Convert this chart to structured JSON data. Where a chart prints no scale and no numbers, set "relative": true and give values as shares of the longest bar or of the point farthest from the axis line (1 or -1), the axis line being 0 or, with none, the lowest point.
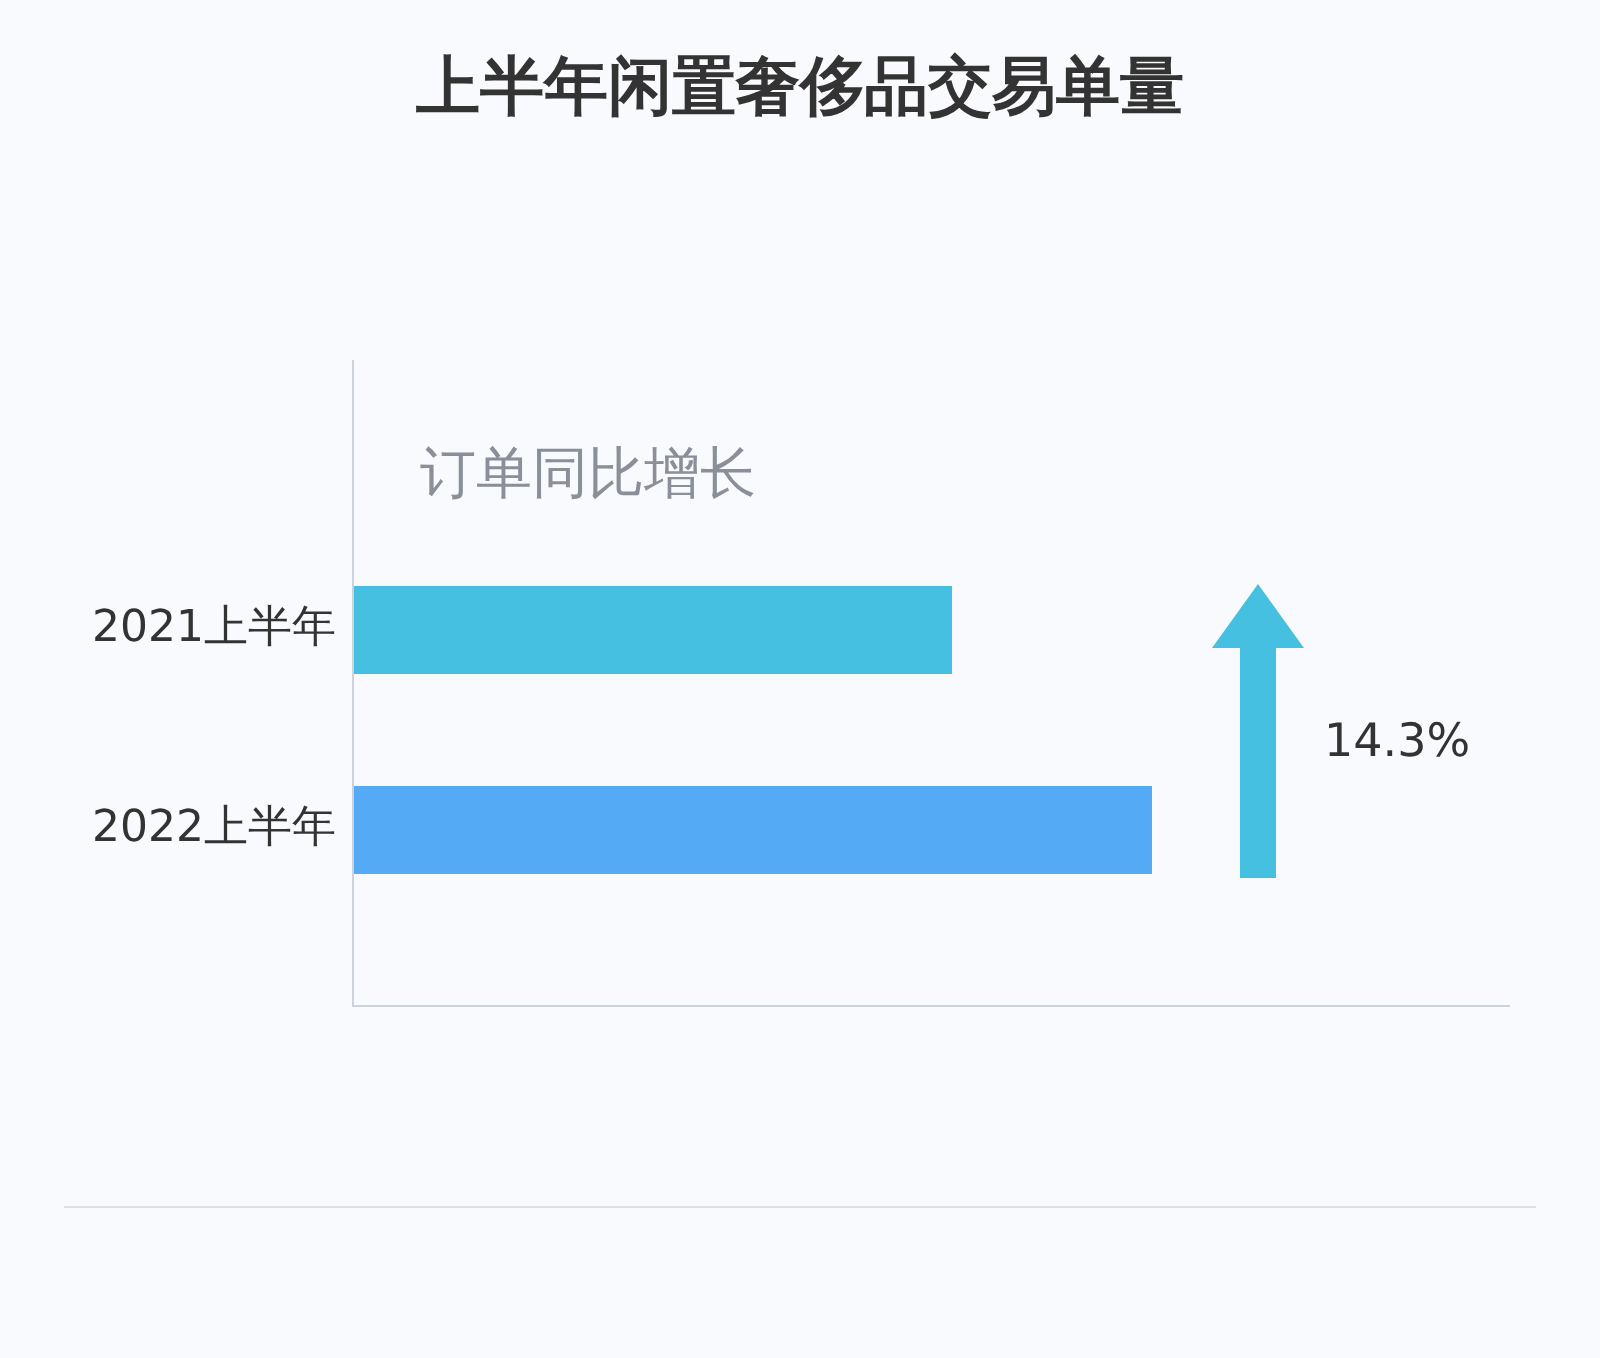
{
  "chart_data": {
    "type": "bar",
    "orientation": "horizontal",
    "relative": true,
    "title": "上半年闲置奢侈品交易单量",
    "categories": [
      "2021上半年",
      "2022上半年"
    ],
    "values": [
      0.75,
      1
    ],
    "colors": [
      "#45c0e0",
      "#55aaf5"
    ],
    "annotations": [
      "订单同比增长",
      "14.3%"
    ],
    "grid": false,
    "legend": false,
    "tick_labels": "y"
  }
}
